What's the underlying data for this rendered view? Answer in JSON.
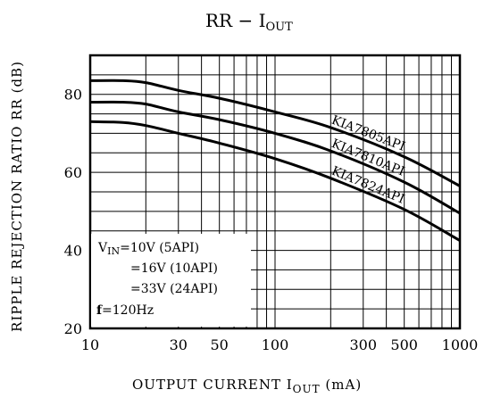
{
  "chart_data": {
    "type": "line",
    "title": "RR  −  I",
    "title_sub": "OUT",
    "xlabel": "OUTPUT  CURRENT  I",
    "xlabel_sub": "OUT",
    "xlabel_unit": "  (mA)",
    "ylabel": "RIPPLE  REJECTION  RATIO  RR  (dB)",
    "xscale": "log",
    "xlim": [
      10,
      1000
    ],
    "ylim": [
      20,
      90
    ],
    "x_ticks": [
      10,
      30,
      50,
      100,
      300,
      500,
      1000
    ],
    "x_tick_labels": [
      "10",
      "30",
      "50",
      "100",
      "300",
      "500",
      "1000"
    ],
    "y_ticks": [
      20,
      40,
      60,
      80
    ],
    "y_tick_labels": [
      "20",
      "40",
      "60",
      "80"
    ],
    "grid": true,
    "series": [
      {
        "name": "KIA7805API",
        "x": [
          10,
          15,
          20,
          30,
          50,
          100,
          200,
          500,
          1000
        ],
        "y": [
          83.5,
          83.5,
          83,
          81,
          79,
          75.5,
          71.5,
          64,
          56.5
        ]
      },
      {
        "name": "KIA7810API",
        "x": [
          10,
          15,
          20,
          30,
          50,
          100,
          200,
          500,
          1000
        ],
        "y": [
          78,
          78,
          77.5,
          75.5,
          73.5,
          70,
          65.5,
          57.5,
          49.5
        ]
      },
      {
        "name": "KIA7824API",
        "x": [
          10,
          15,
          20,
          30,
          50,
          100,
          200,
          500,
          1000
        ],
        "y": [
          73,
          72.8,
          72,
          70,
          67.5,
          63.5,
          58.5,
          50.5,
          42.5
        ]
      }
    ],
    "legend": {
      "placement": "bottom-left",
      "vin_label": "V",
      "vin_sub": "IN",
      "lines": [
        "=10V  (5API)",
        "=16V  (10API)",
        "=33V  (24API)"
      ],
      "freq_bold": "f",
      "freq_rest": "=120Hz"
    }
  }
}
